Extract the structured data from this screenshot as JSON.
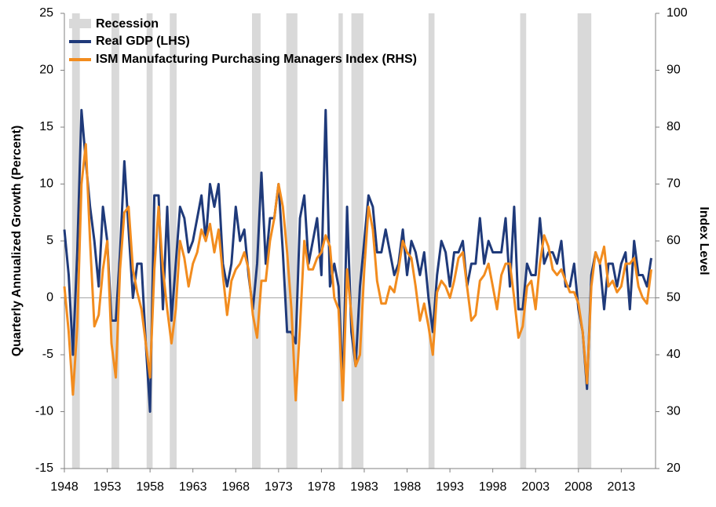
{
  "chart_data": {
    "type": "line",
    "y_label": "Quarterly Annualized Growth (Percent)",
    "y2_label": "Index Level",
    "legend": "upper left",
    "recessions": {
      "name": "Recession",
      "color": "#d9d9d9",
      "periods": [
        [
          1948.9,
          1949.8
        ],
        [
          1953.5,
          1954.4
        ],
        [
          1957.6,
          1958.3
        ],
        [
          1960.3,
          1961.1
        ],
        [
          1969.9,
          1970.9
        ],
        [
          1973.9,
          1975.2
        ],
        [
          1980.0,
          1980.5
        ],
        [
          1981.5,
          1982.9
        ],
        [
          1990.5,
          1991.2
        ],
        [
          2001.2,
          2001.9
        ],
        [
          2007.9,
          2009.5
        ]
      ]
    },
    "x": [
      1948,
      1948.5,
      1949,
      1949.5,
      1950,
      1950.5,
      1951,
      1951.5,
      1952,
      1952.5,
      1953,
      1953.5,
      1954,
      1954.5,
      1955,
      1955.5,
      1956,
      1956.5,
      1957,
      1957.5,
      1958,
      1958.5,
      1959,
      1959.5,
      1960,
      1960.5,
      1961,
      1961.5,
      1962,
      1962.5,
      1963,
      1963.5,
      1964,
      1964.5,
      1965,
      1965.5,
      1966,
      1966.5,
      1967,
      1967.5,
      1968,
      1968.5,
      1969,
      1969.5,
      1970,
      1970.5,
      1971,
      1971.5,
      1972,
      1972.5,
      1973,
      1973.5,
      1974,
      1974.5,
      1975,
      1975.5,
      1976,
      1976.5,
      1977,
      1977.5,
      1978,
      1978.5,
      1979,
      1979.5,
      1980,
      1980.5,
      1981,
      1981.5,
      1982,
      1982.5,
      1983,
      1983.5,
      1984,
      1984.5,
      1985,
      1985.5,
      1986,
      1986.5,
      1987,
      1987.5,
      1988,
      1988.5,
      1989,
      1989.5,
      1990,
      1990.5,
      1991,
      1991.5,
      1992,
      1992.5,
      1993,
      1993.5,
      1994,
      1994.5,
      1995,
      1995.5,
      1996,
      1996.5,
      1997,
      1997.5,
      1998,
      1998.5,
      1999,
      1999.5,
      2000,
      2000.5,
      2001,
      2001.5,
      2002,
      2002.5,
      2003,
      2003.5,
      2004,
      2004.5,
      2005,
      2005.5,
      2006,
      2006.5,
      2007,
      2007.5,
      2008,
      2008.5,
      2009,
      2009.5,
      2010,
      2010.5,
      2011,
      2011.5,
      2012,
      2012.5,
      2013,
      2013.5,
      2014,
      2014.5,
      2015,
      2015.5,
      2016,
      2016.5
    ],
    "series": [
      {
        "name": "Real GDP (LHS)",
        "color": "#1f3a7a",
        "axis": "y",
        "values": [
          6,
          2,
          -5,
          4,
          16.5,
          12,
          8,
          5,
          1,
          8,
          5,
          -2,
          -2,
          4,
          12,
          6,
          0,
          3,
          3,
          -4,
          -10,
          9,
          9,
          -1,
          8,
          -2,
          3,
          8,
          7,
          4,
          5,
          7,
          9,
          5,
          10,
          8,
          10,
          3,
          1,
          3,
          8,
          5,
          6,
          2,
          -1,
          3,
          11,
          3,
          7,
          7,
          10,
          4,
          -3,
          -3,
          -4,
          7,
          9,
          3,
          5,
          7,
          2,
          16.5,
          1,
          3,
          1,
          -8,
          8,
          -3,
          -6,
          1,
          5,
          9,
          8,
          4,
          4,
          6,
          4,
          2,
          3,
          6,
          2,
          5,
          4,
          2,
          4,
          0,
          -3,
          2,
          5,
          4,
          1,
          4,
          4,
          5,
          1,
          3,
          3,
          7,
          3,
          5,
          4,
          4,
          4,
          7,
          1,
          8,
          -1,
          -1,
          3,
          2,
          2,
          7,
          3,
          4,
          4,
          3,
          5,
          1,
          1,
          3,
          -1,
          -3,
          -8,
          2,
          4,
          3,
          -1,
          3,
          3,
          1,
          3,
          4,
          -1,
          5,
          2,
          2,
          1,
          3.5
        ]
      },
      {
        "name": "ISM Manufacturing Purchasing Managers Index (RHS)",
        "color": "#f28c1e",
        "axis": "y2",
        "values": [
          52,
          44,
          33,
          45,
          70,
          77,
          60,
          45,
          47,
          55,
          60,
          42,
          36,
          55,
          65,
          66,
          55,
          51,
          48,
          42,
          36,
          55,
          66,
          55,
          48,
          42,
          48,
          60,
          57,
          52,
          56,
          58,
          62,
          60,
          63,
          58,
          62,
          54,
          47,
          53,
          55,
          56,
          58,
          55,
          47,
          43,
          53,
          53,
          60,
          64,
          70,
          66,
          58,
          48,
          32,
          45,
          60,
          55,
          55,
          57,
          58,
          61,
          59,
          50,
          48,
          32,
          55,
          47,
          38,
          40,
          55,
          66,
          62,
          53,
          49,
          49,
          52,
          51,
          55,
          60,
          58,
          57,
          52,
          46,
          49,
          45,
          40,
          51,
          53,
          52,
          50,
          53,
          57,
          58,
          52,
          46,
          47,
          53,
          54,
          56,
          52,
          48,
          54,
          56,
          56,
          50,
          43,
          45,
          52,
          53,
          48,
          56,
          61,
          59,
          55,
          54,
          55,
          53,
          51,
          51,
          49,
          44,
          35,
          52,
          58,
          56,
          59,
          52,
          53,
          51,
          52,
          56,
          56,
          57,
          52,
          50,
          49,
          55
        ]
      }
    ],
    "xlim": [
      1948,
      2017
    ],
    "xticks": [
      1948,
      1953,
      1958,
      1963,
      1968,
      1973,
      1978,
      1983,
      1988,
      1993,
      1998,
      2003,
      2008,
      2013
    ],
    "ylim": [
      -15,
      25
    ],
    "yticks": [
      -15,
      -10,
      -5,
      0,
      5,
      10,
      15,
      20,
      25
    ],
    "y2lim": [
      20,
      100
    ],
    "y2ticks": [
      20,
      30,
      40,
      50,
      60,
      70,
      80,
      90,
      100
    ]
  }
}
